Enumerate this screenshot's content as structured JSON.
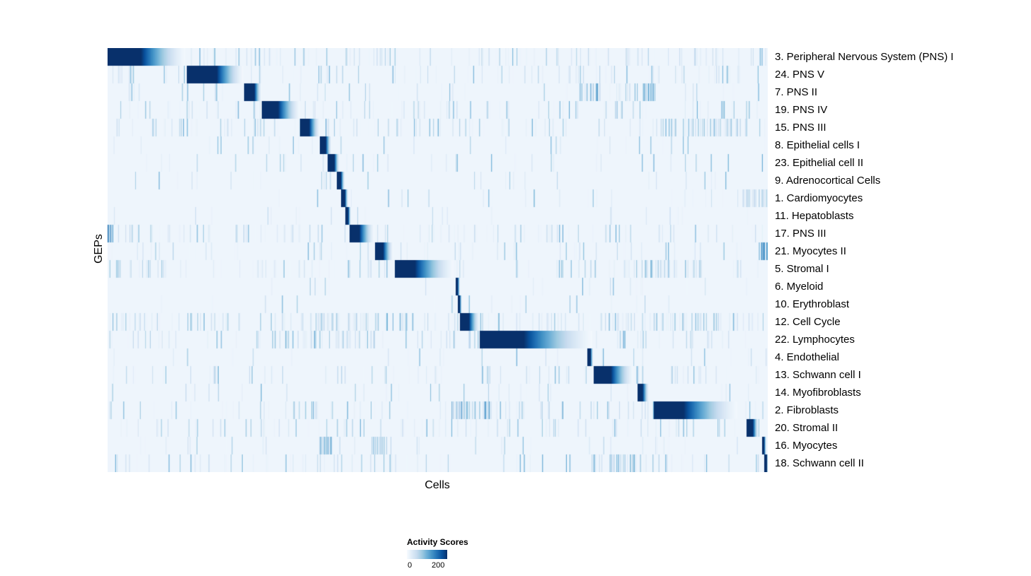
{
  "colors": {
    "scale": [
      "#f7fbff",
      "#deebf7",
      "#c6dbef",
      "#9ecae1",
      "#6baed6",
      "#4292c6",
      "#2171b5",
      "#08519c",
      "#08306b"
    ],
    "background": "#eef5fc"
  },
  "chart_data": {
    "type": "heatmap",
    "title": "",
    "xlabel": "Cells",
    "ylabel": "GEPs",
    "colorbar": {
      "title": "Activity Scores",
      "min": 0,
      "max": 200
    },
    "description": "GEP activity scores per cell; each row shows a dark-blue high-activity block (fractional x positions: start, solid, end of fade) along a diagonal, over a light-blue noisy background of scattered vertical streaks.",
    "rows": [
      {
        "label": "3. Peripheral Nervous System (PNS) I",
        "block": {
          "start": 0.0,
          "solid": 0.05,
          "end": 0.125
        },
        "noise": 0.5
      },
      {
        "label": "24. PNS V",
        "block": {
          "start": 0.121,
          "solid": 0.165,
          "end": 0.21
        },
        "noise": 0.4
      },
      {
        "label": "7. PNS II",
        "block": {
          "start": 0.207,
          "solid": 0.222,
          "end": 0.234
        },
        "noise": 0.15,
        "clusters": [
          {
            "c": 0.77,
            "w": 0.06,
            "s": 0.7
          }
        ]
      },
      {
        "label": "19. PNS IV",
        "block": {
          "start": 0.234,
          "solid": 0.258,
          "end": 0.295
        },
        "noise": 0.4
      },
      {
        "label": "15. PNS III",
        "block": {
          "start": 0.292,
          "solid": 0.305,
          "end": 0.323
        },
        "noise": 0.45,
        "clusters": [
          {
            "c": 0.9,
            "w": 0.07,
            "s": 0.5
          }
        ]
      },
      {
        "label": "8. Epithelial cells I",
        "block": {
          "start": 0.322,
          "solid": 0.33,
          "end": 0.34
        },
        "noise": 0.12
      },
      {
        "label": "23. Epithelial cell II",
        "block": {
          "start": 0.334,
          "solid": 0.343,
          "end": 0.352
        },
        "noise": 0.15
      },
      {
        "label": "9. Adrenocortical Cells",
        "block": {
          "start": 0.348,
          "solid": 0.353,
          "end": 0.36
        },
        "noise": 0.1
      },
      {
        "label": "1. Cardiomyocytes",
        "block": {
          "start": 0.354,
          "solid": 0.359,
          "end": 0.365
        },
        "noise": 0.1,
        "clusters": [
          {
            "c": 0.98,
            "w": 0.02,
            "s": 0.4
          }
        ]
      },
      {
        "label": "11. Hepatoblasts",
        "block": {
          "start": 0.361,
          "solid": 0.364,
          "end": 0.369
        },
        "noise": 0.08
      },
      {
        "label": "17. PNS III",
        "block": {
          "start": 0.367,
          "solid": 0.381,
          "end": 0.406
        },
        "noise": 0.45,
        "clusters": [
          {
            "c": 0.004,
            "w": 0.004,
            "s": 0.9
          }
        ]
      },
      {
        "label": "21. Myocytes II",
        "block": {
          "start": 0.406,
          "solid": 0.417,
          "end": 0.434
        },
        "noise": 0.25,
        "clusters": [
          {
            "c": 0.995,
            "w": 0.005,
            "s": 0.8
          }
        ]
      },
      {
        "label": "5. Stromal I",
        "block": {
          "start": 0.436,
          "solid": 0.465,
          "end": 0.53
        },
        "noise": 0.4,
        "clusters": [
          {
            "c": 0.85,
            "w": 0.05,
            "s": 0.5
          }
        ]
      },
      {
        "label": "6. Myeloid",
        "block": {
          "start": 0.528,
          "solid": 0.53,
          "end": 0.534
        },
        "noise": 0.08
      },
      {
        "label": "10. Erythroblast",
        "block": {
          "start": 0.531,
          "solid": 0.533,
          "end": 0.537
        },
        "noise": 0.08
      },
      {
        "label": "12. Cell Cycle",
        "block": {
          "start": 0.534,
          "solid": 0.547,
          "end": 0.565
        },
        "noise": 0.55,
        "clusters": [
          {
            "c": 0.35,
            "w": 0.06,
            "s": 0.5
          },
          {
            "c": 0.85,
            "w": 0.08,
            "s": 0.5
          }
        ]
      },
      {
        "label": "22. Lymphocytes",
        "block": {
          "start": 0.564,
          "solid": 0.63,
          "end": 0.745
        },
        "noise": 0.4,
        "clusters": [
          {
            "c": 0.33,
            "w": 0.08,
            "s": 0.5
          }
        ]
      },
      {
        "label": "4. Endothelial",
        "block": {
          "start": 0.727,
          "solid": 0.731,
          "end": 0.736
        },
        "noise": 0.1
      },
      {
        "label": "13. Schwann cell I",
        "block": {
          "start": 0.737,
          "solid": 0.762,
          "end": 0.8
        },
        "noise": 0.35
      },
      {
        "label": "14. Myofibroblasts",
        "block": {
          "start": 0.803,
          "solid": 0.81,
          "end": 0.821
        },
        "noise": 0.12
      },
      {
        "label": "2. Fibroblasts",
        "block": {
          "start": 0.828,
          "solid": 0.872,
          "end": 0.963
        },
        "noise": 0.4,
        "clusters": [
          {
            "c": 0.55,
            "w": 0.03,
            "s": 0.8
          }
        ]
      },
      {
        "label": "20. Stromal II",
        "block": {
          "start": 0.968,
          "solid": 0.977,
          "end": 0.987
        },
        "noise": 0.35
      },
      {
        "label": "16. Myocytes",
        "block": {
          "start": 0.992,
          "solid": 0.994,
          "end": 0.998
        },
        "noise": 0.12,
        "clusters": [
          {
            "c": 0.33,
            "w": 0.01,
            "s": 0.6
          },
          {
            "c": 0.41,
            "w": 0.01,
            "s": 0.5
          }
        ]
      },
      {
        "label": "18. Schwann cell II",
        "block": {
          "start": 0.995,
          "solid": 0.998,
          "end": 1.0
        },
        "noise": 0.35,
        "clusters": [
          {
            "c": 0.77,
            "w": 0.04,
            "s": 0.6
          }
        ]
      }
    ]
  }
}
